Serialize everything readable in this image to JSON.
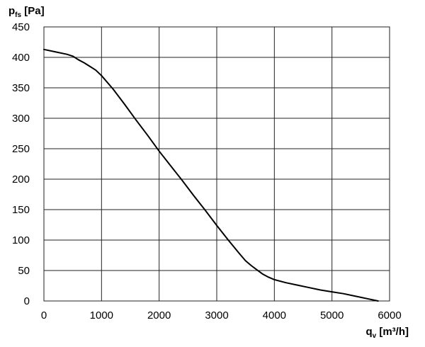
{
  "chart_data": {
    "type": "line",
    "y_axis": {
      "main": "p",
      "sub": "fs",
      "unit": " [Pa]"
    },
    "x_axis": {
      "main": "q",
      "sub": "v",
      "unit": " [m³/h]"
    },
    "xlim": [
      0,
      6000
    ],
    "ylim": [
      0,
      450
    ],
    "x_ticks": [
      "0",
      "1000",
      "2000",
      "3000",
      "4000",
      "5000",
      "6000"
    ],
    "y_ticks": [
      "0",
      "50",
      "100",
      "150",
      "200",
      "250",
      "300",
      "350",
      "400",
      "450"
    ],
    "grid": true,
    "series": [
      {
        "x": [
          0,
          200,
          400,
          500,
          600,
          700,
          800,
          900,
          1000,
          1200,
          1400,
          1600,
          1800,
          2000,
          2200,
          2400,
          2600,
          2800,
          3000,
          3200,
          3400,
          3500,
          3600,
          3700,
          3800,
          3900,
          4000,
          4200,
          4400,
          4600,
          4800,
          5000,
          5200,
          5400,
          5600,
          5800
        ],
        "y": [
          413,
          409,
          405,
          402,
          396,
          391,
          385,
          379,
          370,
          348,
          323,
          297,
          272,
          246,
          222,
          198,
          173,
          149,
          124,
          100,
          77,
          66,
          58,
          51,
          44,
          39,
          35,
          30,
          26,
          22,
          18,
          15,
          12,
          8,
          4,
          0
        ]
      }
    ]
  }
}
